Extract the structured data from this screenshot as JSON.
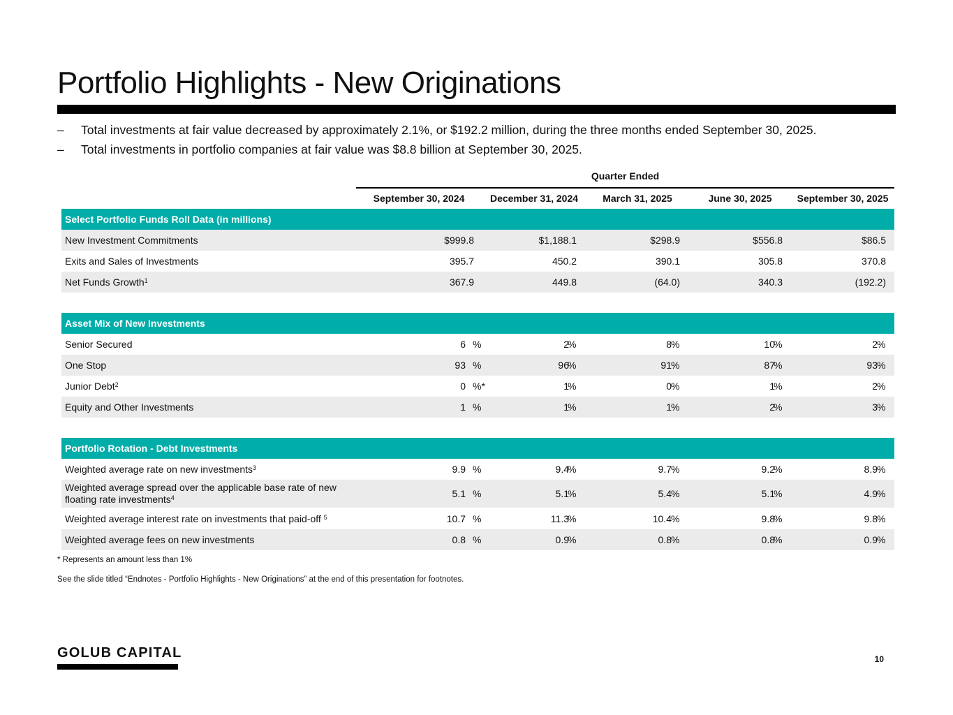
{
  "title": "Portfolio Highlights - New Originations",
  "bullets": [
    "Total investments at fair value decreased by approximately 2.1%, or $192.2 million, during the three months ended September 30, 2025.",
    "Total investments in portfolio companies at fair value was $8.8 billion at September 30, 2025."
  ],
  "bullet_marker": "–",
  "table": {
    "group_header": "Quarter Ended",
    "columns": [
      "September 30, 2024",
      "December 31, 2024",
      "March 31, 2025",
      "June 30, 2025",
      "September 30, 2025"
    ],
    "section1": {
      "header": "Select Portfolio Funds Roll Data (in millions)",
      "rows": [
        {
          "label": "New Investment Commitments",
          "sup": "",
          "values": [
            "$999.8",
            "$1,188.1",
            "$298.9",
            "$556.8",
            "$86.5"
          ]
        },
        {
          "label": "Exits and Sales of Investments",
          "sup": "",
          "values": [
            "395.7",
            "450.2",
            "390.1",
            "305.8",
            "370.8"
          ]
        },
        {
          "label": "Net Funds Growth",
          "sup": "1",
          "values": [
            "367.9",
            "449.8",
            "(64.0)",
            "340.3",
            "(192.2)"
          ]
        }
      ]
    },
    "section2": {
      "header": "Asset Mix of New Investments",
      "rows": [
        {
          "label": "Senior Secured",
          "sup": "",
          "values": [
            "6",
            "2",
            "8",
            "10",
            "2"
          ],
          "units": [
            "%",
            "%",
            "%",
            "%",
            "%"
          ]
        },
        {
          "label": "One Stop",
          "sup": "",
          "values": [
            "93",
            "96",
            "91",
            "87",
            "93"
          ],
          "units": [
            "%",
            "%",
            "%",
            "%",
            "%"
          ]
        },
        {
          "label": "Junior Debt",
          "sup": "2",
          "values": [
            "0",
            "1",
            "0",
            "1",
            "2"
          ],
          "units": [
            "%*",
            "%",
            "%",
            "%",
            "%"
          ]
        },
        {
          "label": "Equity and Other Investments",
          "sup": "",
          "values": [
            "1",
            "1",
            "1",
            "2",
            "3"
          ],
          "units": [
            "%",
            "%",
            "%",
            "%",
            "%"
          ]
        }
      ]
    },
    "section3": {
      "header": "Portfolio Rotation - Debt Investments",
      "rows": [
        {
          "label": "Weighted average rate on new investments",
          "sup": "3",
          "values": [
            "9.9",
            "9.4",
            "9.7",
            "9.2",
            "8.9"
          ],
          "units": [
            "%",
            "%",
            "%",
            "%",
            "%"
          ]
        },
        {
          "label": "Weighted average spread over the applicable base rate of new floating rate investments",
          "sup": "4",
          "values": [
            "5.1",
            "5.1",
            "5.4",
            "5.1",
            "4.9"
          ],
          "units": [
            "%",
            "%",
            "%",
            "%",
            "%"
          ]
        },
        {
          "label": "Weighted average interest rate on investments that paid-off ",
          "sup": "5",
          "values": [
            "10.7",
            "11.3",
            "10.4",
            "9.8",
            "9.8"
          ],
          "units": [
            "%",
            "%",
            "%",
            "%",
            "%"
          ]
        },
        {
          "label": "Weighted average fees on new investments",
          "sup": "",
          "values": [
            "0.8",
            "0.9",
            "0.8",
            "0.8",
            "0.9"
          ],
          "units": [
            "%",
            "%",
            "%",
            "%",
            "%"
          ]
        }
      ]
    }
  },
  "notes": [
    "* Represents an amount less than 1%",
    "See the slide titled “Endnotes - Portfolio Highlights - New Originations” at the end of this presentation for footnotes."
  ],
  "logo": "GOLUB CAPITAL",
  "page_number": "10",
  "colors": {
    "teal": "#00ada9",
    "shade": "#ebebeb",
    "black": "#000000"
  }
}
